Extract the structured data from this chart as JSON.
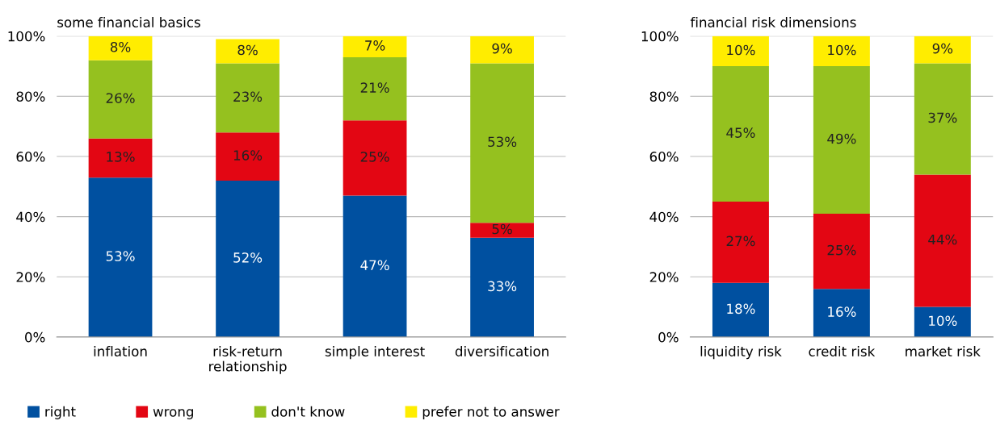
{
  "chart_data": [
    {
      "type": "bar",
      "title": "some financial basics",
      "stacked": true,
      "categories": [
        "inflation",
        "risk-return\nrelationship",
        "simple interest",
        "diversification"
      ],
      "ylim": [
        0,
        100
      ],
      "yticks": [
        {
          "value": 0,
          "label": "0%"
        },
        {
          "value": 20,
          "label": "20%"
        },
        {
          "value": 40,
          "label": "40%"
        },
        {
          "value": 60,
          "label": "60%"
        },
        {
          "value": 80,
          "label": "80%"
        },
        {
          "value": 100,
          "label": "100%"
        }
      ],
      "grid": "y",
      "legend": "bottom",
      "series": [
        {
          "name": "right",
          "color": "#0050a0",
          "values": [
            53,
            52,
            47,
            33
          ],
          "value_labels": [
            "53%",
            "52%",
            "47%",
            "33%"
          ]
        },
        {
          "name": "wrong",
          "color": "#e30613",
          "values": [
            13,
            16,
            25,
            5
          ],
          "value_labels": [
            "13%",
            "16%",
            "25%",
            "5%"
          ]
        },
        {
          "name": "don't know",
          "color": "#95c11f",
          "values": [
            26,
            23,
            21,
            53
          ],
          "value_labels": [
            "26%",
            "23%",
            "21%",
            "53%"
          ]
        },
        {
          "name": "prefer not to answer",
          "color": "#ffed00",
          "values": [
            8,
            8,
            7,
            9
          ],
          "value_labels": [
            "8%",
            "8%",
            "7%",
            "9%"
          ]
        }
      ]
    },
    {
      "type": "bar",
      "title": "financial risk dimensions",
      "stacked": true,
      "categories": [
        "liquidity risk",
        "credit risk",
        "market risk"
      ],
      "ylim": [
        0,
        100
      ],
      "yticks": [
        {
          "value": 0,
          "label": "0%"
        },
        {
          "value": 20,
          "label": "20%"
        },
        {
          "value": 40,
          "label": "40%"
        },
        {
          "value": 60,
          "label": "60%"
        },
        {
          "value": 80,
          "label": "80%"
        },
        {
          "value": 100,
          "label": "100%"
        }
      ],
      "grid": "y",
      "series": [
        {
          "color": "#0050a0",
          "values": [
            18,
            16,
            10
          ],
          "value_labels": [
            "18%",
            "16%",
            "10%"
          ]
        },
        {
          "color": "#e30613",
          "values": [
            27,
            25,
            44
          ],
          "value_labels": [
            "27%",
            "25%",
            "44%"
          ]
        },
        {
          "color": "#95c11f",
          "values": [
            45,
            49,
            37
          ],
          "value_labels": [
            "45%",
            "49%",
            "37%"
          ]
        },
        {
          "color": "#ffed00",
          "values": [
            10,
            10,
            9
          ],
          "value_labels": [
            "10%",
            "10%",
            "9%"
          ]
        }
      ]
    }
  ]
}
